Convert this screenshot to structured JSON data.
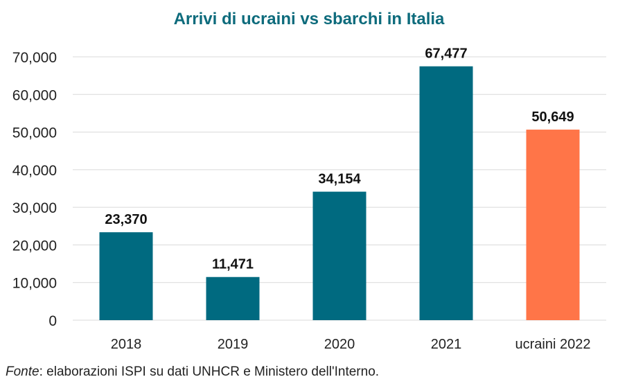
{
  "chart_data": {
    "type": "bar",
    "title": "Arrivi di ucraini vs sbarchi in Italia",
    "categories": [
      "2018",
      "2019",
      "2020",
      "2021",
      "ucraini 2022"
    ],
    "values": [
      23370,
      11471,
      34154,
      67477,
      50649
    ],
    "value_labels": [
      "23,370",
      "11,471",
      "34,154",
      "67,477",
      "50,649"
    ],
    "ylim": [
      0,
      70000
    ],
    "yticks": [
      0,
      10000,
      20000,
      30000,
      40000,
      50000,
      60000,
      70000
    ],
    "ytick_labels": [
      "0",
      "10,000",
      "20,000",
      "30,000",
      "40,000",
      "50,000",
      "60,000",
      "70,000"
    ],
    "xlabel": "",
    "ylabel": "",
    "grid": true,
    "colors": [
      "#006a80",
      "#006a80",
      "#006a80",
      "#006a80",
      "#ff7548"
    ]
  },
  "colors": {
    "title": "#0d6b7c",
    "grid": "#d9d9d9",
    "text": "#222222"
  },
  "source": {
    "prefix": "Fonte",
    "text": ": elaborazioni ISPI su dati UNHCR e Ministero dell'Interno."
  }
}
